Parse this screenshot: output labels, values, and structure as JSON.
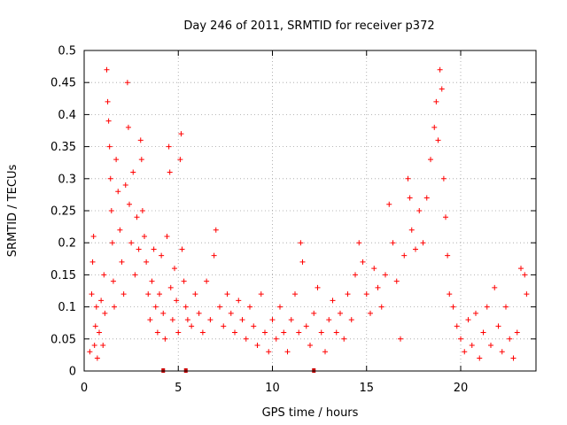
{
  "chart_data": {
    "type": "scatter",
    "title": "Day 246 of 2011, SRMTID for receiver p372",
    "xlabel": "GPS time / hours",
    "ylabel": "SRMTID / TECUs",
    "xlim": [
      0,
      24
    ],
    "ylim": [
      0,
      0.5
    ],
    "x_ticks": [
      "0",
      "5",
      "10",
      "15",
      "20"
    ],
    "y_ticks": [
      "0",
      "0.05",
      "0.1",
      "0.15",
      "0.2",
      "0.25",
      "0.3",
      "0.35",
      "0.4",
      "0.45",
      "0.5"
    ],
    "grid": true,
    "marker": "plus",
    "color": "#ff0000",
    "gap_markers_x": [
      4.2,
      5.4,
      12.2
    ],
    "series": [
      {
        "name": "",
        "points": [
          [
            0.3,
            0.03
          ],
          [
            0.4,
            0.12
          ],
          [
            0.45,
            0.17
          ],
          [
            0.5,
            0.21
          ],
          [
            0.55,
            0.04
          ],
          [
            0.6,
            0.07
          ],
          [
            0.65,
            0.1
          ],
          [
            0.7,
            0.02
          ],
          [
            0.8,
            0.06
          ],
          [
            0.9,
            0.11
          ],
          [
            1.0,
            0.04
          ],
          [
            1.05,
            0.15
          ],
          [
            1.1,
            0.09
          ],
          [
            1.2,
            0.47
          ],
          [
            1.25,
            0.42
          ],
          [
            1.3,
            0.39
          ],
          [
            1.35,
            0.35
          ],
          [
            1.4,
            0.3
          ],
          [
            1.45,
            0.25
          ],
          [
            1.5,
            0.2
          ],
          [
            1.55,
            0.14
          ],
          [
            1.6,
            0.1
          ],
          [
            1.7,
            0.33
          ],
          [
            1.8,
            0.28
          ],
          [
            1.9,
            0.22
          ],
          [
            2.0,
            0.17
          ],
          [
            2.1,
            0.12
          ],
          [
            2.2,
            0.29
          ],
          [
            2.3,
            0.45
          ],
          [
            2.35,
            0.38
          ],
          [
            2.4,
            0.26
          ],
          [
            2.5,
            0.2
          ],
          [
            2.6,
            0.31
          ],
          [
            2.7,
            0.15
          ],
          [
            2.8,
            0.24
          ],
          [
            2.9,
            0.19
          ],
          [
            3.0,
            0.36
          ],
          [
            3.05,
            0.33
          ],
          [
            3.1,
            0.25
          ],
          [
            3.2,
            0.21
          ],
          [
            3.3,
            0.17
          ],
          [
            3.4,
            0.12
          ],
          [
            3.5,
            0.08
          ],
          [
            3.6,
            0.14
          ],
          [
            3.7,
            0.19
          ],
          [
            3.8,
            0.1
          ],
          [
            3.9,
            0.06
          ],
          [
            4.0,
            0.12
          ],
          [
            4.1,
            0.18
          ],
          [
            4.2,
            0.09
          ],
          [
            4.3,
            0.05
          ],
          [
            4.4,
            0.21
          ],
          [
            4.5,
            0.35
          ],
          [
            4.55,
            0.31
          ],
          [
            4.6,
            0.13
          ],
          [
            4.7,
            0.08
          ],
          [
            4.8,
            0.16
          ],
          [
            4.9,
            0.11
          ],
          [
            5.0,
            0.06
          ],
          [
            5.1,
            0.33
          ],
          [
            5.15,
            0.37
          ],
          [
            5.2,
            0.19
          ],
          [
            5.3,
            0.14
          ],
          [
            5.4,
            0.1
          ],
          [
            5.5,
            0.08
          ],
          [
            5.7,
            0.07
          ],
          [
            5.9,
            0.12
          ],
          [
            6.1,
            0.09
          ],
          [
            6.3,
            0.06
          ],
          [
            6.5,
            0.14
          ],
          [
            6.7,
            0.08
          ],
          [
            6.9,
            0.18
          ],
          [
            7.0,
            0.22
          ],
          [
            7.2,
            0.1
          ],
          [
            7.4,
            0.07
          ],
          [
            7.6,
            0.12
          ],
          [
            7.8,
            0.09
          ],
          [
            8.0,
            0.06
          ],
          [
            8.2,
            0.11
          ],
          [
            8.4,
            0.08
          ],
          [
            8.6,
            0.05
          ],
          [
            8.8,
            0.1
          ],
          [
            9.0,
            0.07
          ],
          [
            9.2,
            0.04
          ],
          [
            9.4,
            0.12
          ],
          [
            9.6,
            0.06
          ],
          [
            9.8,
            0.03
          ],
          [
            10.0,
            0.08
          ],
          [
            10.2,
            0.05
          ],
          [
            10.4,
            0.1
          ],
          [
            10.6,
            0.06
          ],
          [
            10.8,
            0.03
          ],
          [
            11.0,
            0.08
          ],
          [
            11.2,
            0.12
          ],
          [
            11.4,
            0.06
          ],
          [
            11.5,
            0.2
          ],
          [
            11.6,
            0.17
          ],
          [
            11.8,
            0.07
          ],
          [
            12.0,
            0.04
          ],
          [
            12.2,
            0.09
          ],
          [
            12.4,
            0.13
          ],
          [
            12.6,
            0.06
          ],
          [
            12.8,
            0.03
          ],
          [
            13.0,
            0.08
          ],
          [
            13.2,
            0.11
          ],
          [
            13.4,
            0.06
          ],
          [
            13.6,
            0.09
          ],
          [
            13.8,
            0.05
          ],
          [
            14.0,
            0.12
          ],
          [
            14.2,
            0.08
          ],
          [
            14.4,
            0.15
          ],
          [
            14.6,
            0.2
          ],
          [
            14.8,
            0.17
          ],
          [
            15.0,
            0.12
          ],
          [
            15.2,
            0.09
          ],
          [
            15.4,
            0.16
          ],
          [
            15.6,
            0.13
          ],
          [
            15.8,
            0.1
          ],
          [
            16.0,
            0.15
          ],
          [
            16.2,
            0.26
          ],
          [
            16.4,
            0.2
          ],
          [
            16.6,
            0.14
          ],
          [
            16.8,
            0.05
          ],
          [
            17.0,
            0.18
          ],
          [
            17.2,
            0.3
          ],
          [
            17.3,
            0.27
          ],
          [
            17.4,
            0.22
          ],
          [
            17.6,
            0.19
          ],
          [
            17.8,
            0.25
          ],
          [
            18.0,
            0.2
          ],
          [
            18.2,
            0.27
          ],
          [
            18.4,
            0.33
          ],
          [
            18.6,
            0.38
          ],
          [
            18.7,
            0.42
          ],
          [
            18.8,
            0.36
          ],
          [
            18.9,
            0.47
          ],
          [
            19.0,
            0.44
          ],
          [
            19.1,
            0.3
          ],
          [
            19.2,
            0.24
          ],
          [
            19.3,
            0.18
          ],
          [
            19.4,
            0.12
          ],
          [
            19.6,
            0.1
          ],
          [
            19.8,
            0.07
          ],
          [
            20.0,
            0.05
          ],
          [
            20.2,
            0.03
          ],
          [
            20.4,
            0.08
          ],
          [
            20.6,
            0.04
          ],
          [
            20.8,
            0.09
          ],
          [
            21.0,
            0.02
          ],
          [
            21.2,
            0.06
          ],
          [
            21.4,
            0.1
          ],
          [
            21.6,
            0.04
          ],
          [
            21.8,
            0.13
          ],
          [
            22.0,
            0.07
          ],
          [
            22.2,
            0.03
          ],
          [
            22.4,
            0.1
          ],
          [
            22.6,
            0.05
          ],
          [
            22.8,
            0.02
          ],
          [
            23.0,
            0.06
          ],
          [
            23.2,
            0.16
          ],
          [
            23.4,
            0.15
          ],
          [
            23.5,
            0.12
          ]
        ]
      }
    ]
  }
}
